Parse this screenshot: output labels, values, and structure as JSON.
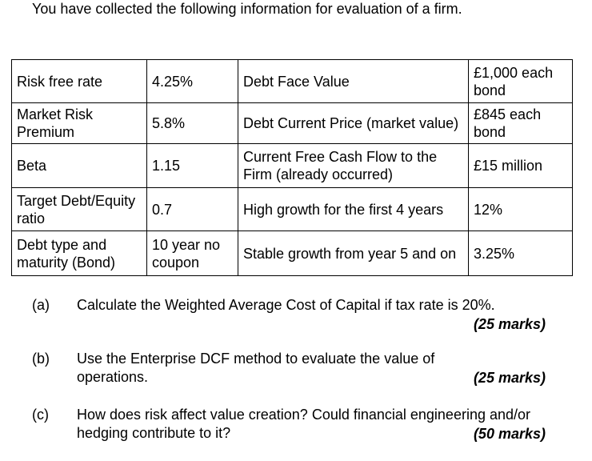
{
  "intro": "You have collected the following information for evaluation of a firm.",
  "table": [
    [
      "Risk free rate",
      "4.25%",
      "Debt Face Value",
      "£1,000 each bond"
    ],
    [
      "Market Risk Premium",
      "5.8%",
      "Debt Current Price (market value)",
      "£845 each bond"
    ],
    [
      "Beta",
      "1.15",
      "Current Free Cash Flow to the Firm (already occurred)",
      "£15 million"
    ],
    [
      "Target Debt/Equity ratio",
      "0.7",
      "High growth for the first 4 years",
      "12%"
    ],
    [
      "Debt type and maturity (Bond)",
      "10 year no coupon",
      "Stable growth from year 5 and on",
      "3.25%"
    ]
  ],
  "questions": [
    {
      "label": "(a)",
      "text": "Calculate the Weighted Average Cost of Capital if tax rate is 20%.",
      "marks": "(25 marks)"
    },
    {
      "label": "(b)",
      "text": "Use the Enterprise DCF method to evaluate the value of operations.",
      "marks": "(25 marks)"
    },
    {
      "label": "(c)",
      "text": "How does risk affect value creation? Could financial engineering and/or hedging contribute to it?",
      "marks": "(50 marks)"
    }
  ]
}
